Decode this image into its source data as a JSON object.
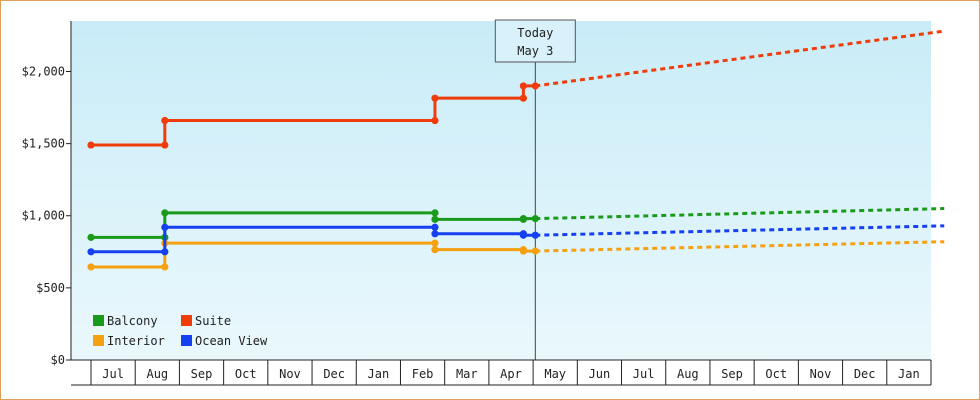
{
  "chart_data": {
    "type": "line",
    "x_axis": {
      "months": [
        "Jul",
        "Aug",
        "Sep",
        "Oct",
        "Nov",
        "Dec",
        "Jan",
        "Feb",
        "Mar",
        "Apr",
        "May",
        "Jun",
        "Jul",
        "Aug",
        "Sep",
        "Oct",
        "Nov",
        "Dec",
        "Jan"
      ]
    },
    "y_axis": {
      "ticks": [
        0,
        500,
        1000,
        1500,
        2000
      ],
      "tick_labels": [
        "$0",
        "$500",
        "$1,000",
        "$1,500",
        "$2,000"
      ],
      "ylim": [
        0,
        2350
      ]
    },
    "today_marker": {
      "line1": "Today",
      "line2": "May 3",
      "month_position": 10.05
    },
    "legend": {
      "placement": "bottom-left"
    },
    "series": [
      {
        "name": "Balcony",
        "color": "#1a9a1a",
        "history": [
          [
            0,
            850
          ],
          [
            1.67,
            850
          ],
          [
            1.67,
            1020
          ],
          [
            7.78,
            1020
          ],
          [
            7.78,
            975
          ],
          [
            9.78,
            975
          ],
          [
            9.78,
            980
          ],
          [
            10.05,
            980
          ]
        ],
        "forecast": [
          [
            10.05,
            980
          ],
          [
            19.3,
            1050
          ]
        ]
      },
      {
        "name": "Suite",
        "color": "#f03c0a",
        "history": [
          [
            0,
            1490
          ],
          [
            1.67,
            1490
          ],
          [
            1.67,
            1660
          ],
          [
            7.78,
            1660
          ],
          [
            7.78,
            1815
          ],
          [
            9.78,
            1815
          ],
          [
            9.78,
            1900
          ],
          [
            10.05,
            1900
          ]
        ],
        "forecast": [
          [
            10.05,
            1900
          ],
          [
            19.3,
            2280
          ]
        ]
      },
      {
        "name": "Interior",
        "color": "#f5a010",
        "history": [
          [
            0,
            645
          ],
          [
            1.67,
            645
          ],
          [
            1.67,
            810
          ],
          [
            7.78,
            810
          ],
          [
            7.78,
            765
          ],
          [
            9.78,
            765
          ],
          [
            9.78,
            755
          ],
          [
            10.05,
            755
          ]
        ],
        "forecast": [
          [
            10.05,
            755
          ],
          [
            19.3,
            820
          ]
        ]
      },
      {
        "name": "Ocean View",
        "color": "#1440f0",
        "history": [
          [
            0,
            750
          ],
          [
            1.67,
            750
          ],
          [
            1.67,
            920
          ],
          [
            7.78,
            920
          ],
          [
            7.78,
            875
          ],
          [
            9.78,
            875
          ],
          [
            9.78,
            865
          ],
          [
            10.05,
            865
          ]
        ],
        "forecast": [
          [
            10.05,
            865
          ],
          [
            19.3,
            930
          ]
        ]
      }
    ]
  }
}
